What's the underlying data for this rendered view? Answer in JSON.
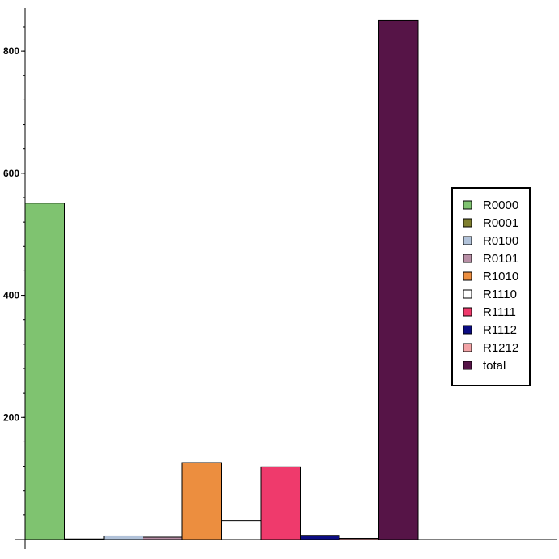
{
  "chart_data": {
    "type": "bar",
    "title": "",
    "xlabel": "",
    "ylabel": "",
    "ylim": [
      0,
      860
    ],
    "yticks": [
      200,
      400,
      600,
      800
    ],
    "grid": false,
    "legend_position": "right",
    "series": [
      {
        "name": "R0000",
        "value": 551,
        "color": "#7FC370"
      },
      {
        "name": "R0001",
        "value": 1,
        "color": "#7F7F2E"
      },
      {
        "name": "R0100",
        "value": 6,
        "color": "#B1C2D9"
      },
      {
        "name": "R0101",
        "value": 4,
        "color": "#B88FA6"
      },
      {
        "name": "R1010",
        "value": 126,
        "color": "#EC8E3F"
      },
      {
        "name": "R1110",
        "value": 31,
        "color": "#FFFFFF"
      },
      {
        "name": "R1111",
        "value": 119,
        "color": "#EF3A6C"
      },
      {
        "name": "R1112",
        "value": 7,
        "color": "#0B0C82"
      },
      {
        "name": "R1212",
        "value": 2,
        "color": "#F2A3A6"
      },
      {
        "name": "total",
        "value": 850,
        "color": "#561447"
      }
    ]
  }
}
